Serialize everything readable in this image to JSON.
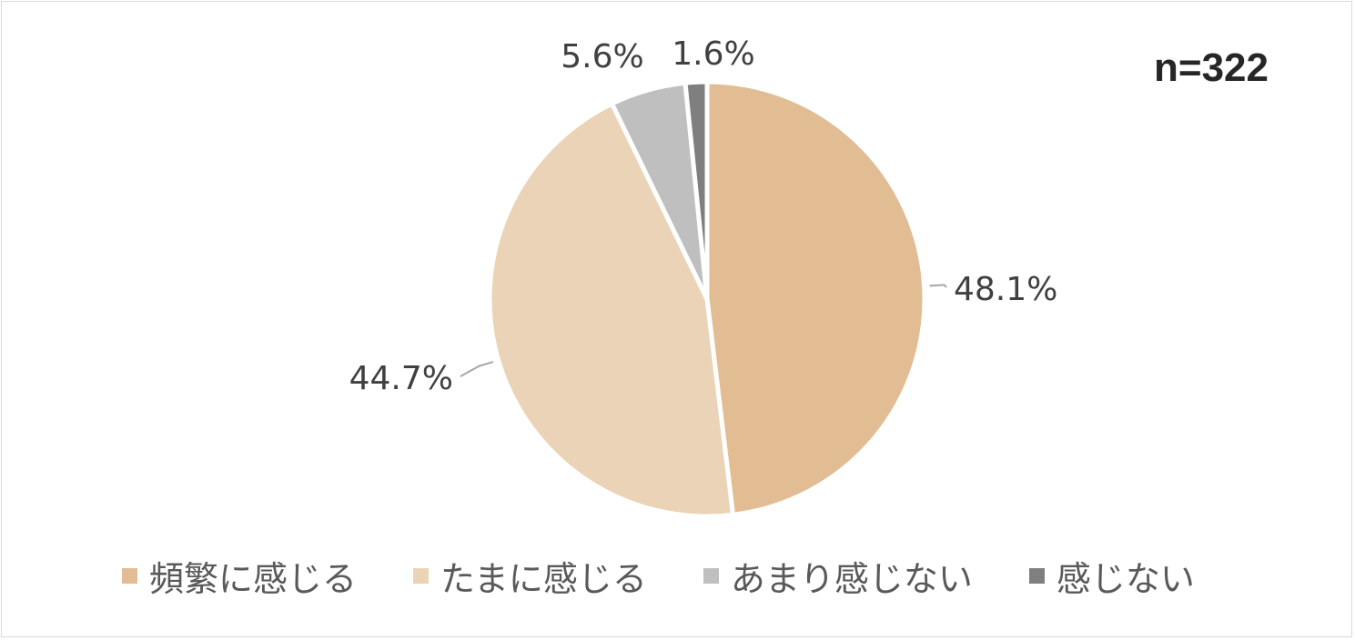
{
  "sample_size_label": "n=322",
  "chart_data": {
    "type": "pie",
    "title": "",
    "slices": [
      {
        "label": "頻繁に感じる",
        "value": 48.1,
        "display": "48.1%",
        "color": "#e2bd93"
      },
      {
        "label": "たまに感じる",
        "value": 44.7,
        "display": "44.7%",
        "color": "#ead3b6"
      },
      {
        "label": "あまり感じない",
        "value": 5.6,
        "display": "5.6%",
        "color": "#bfbfbf"
      },
      {
        "label": "感じない",
        "value": 1.6,
        "display": "1.6%",
        "color": "#7f7f7f"
      }
    ],
    "legend_position": "bottom",
    "start": "top, clockwise"
  },
  "legend": [
    {
      "label": "頻繁に感じる",
      "color": "#e2bd93"
    },
    {
      "label": "たまに感じる",
      "color": "#ead3b6"
    },
    {
      "label": "あまり感じない",
      "color": "#bfbfbf"
    },
    {
      "label": "感じない",
      "color": "#7f7f7f"
    }
  ]
}
